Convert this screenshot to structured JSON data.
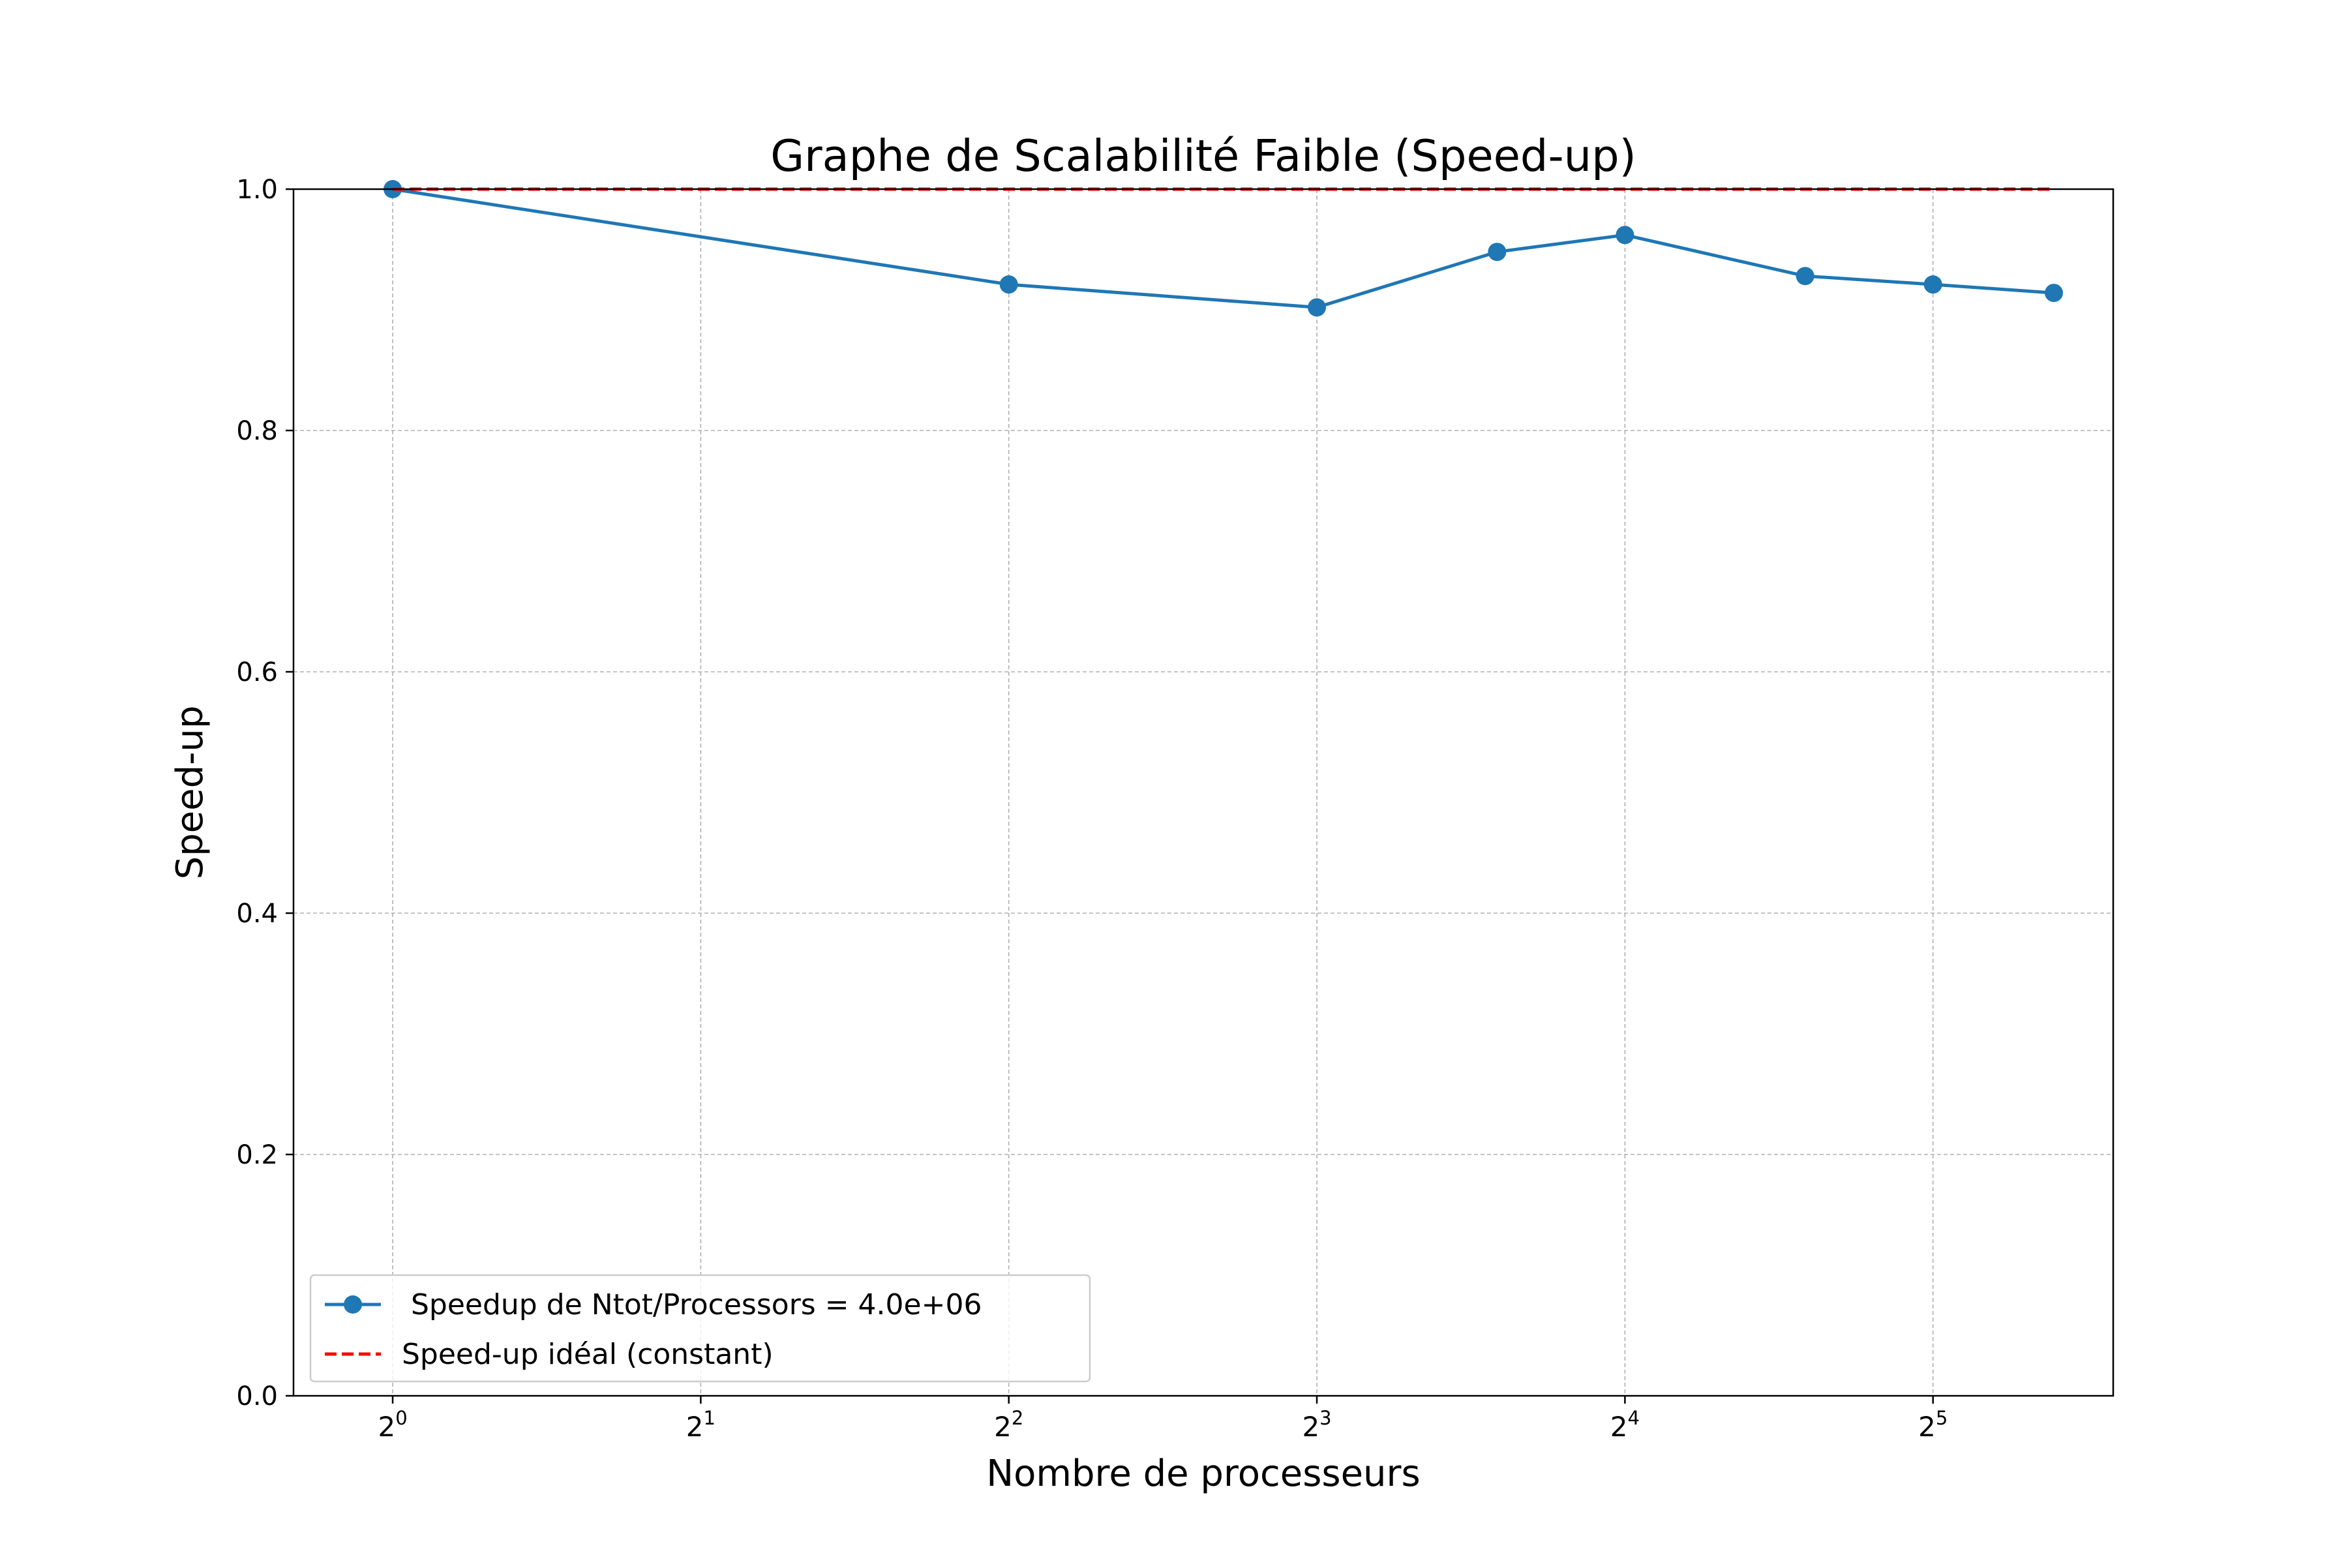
{
  "chart_data": {
    "type": "line",
    "title": "Graphe de Scalabilité Faible (Speed-up)",
    "xlabel": "Nombre de processeurs",
    "ylabel": "Speed-up",
    "xscale": "log2",
    "xlim": [
      0.8,
      48
    ],
    "ylim": [
      0,
      1.0
    ],
    "x_ticks": [
      {
        "value": 1,
        "base": "2",
        "exp": "0"
      },
      {
        "value": 2,
        "base": "2",
        "exp": "1"
      },
      {
        "value": 4,
        "base": "2",
        "exp": "2"
      },
      {
        "value": 8,
        "base": "2",
        "exp": "3"
      },
      {
        "value": 16,
        "base": "2",
        "exp": "4"
      },
      {
        "value": 32,
        "base": "2",
        "exp": "5"
      }
    ],
    "y_ticks": [
      {
        "value": 0.0,
        "label": "0.0"
      },
      {
        "value": 0.2,
        "label": "0.2"
      },
      {
        "value": 0.4,
        "label": "0.4"
      },
      {
        "value": 0.6,
        "label": "0.6"
      },
      {
        "value": 0.8,
        "label": "0.8"
      },
      {
        "value": 1.0,
        "label": "1.0"
      }
    ],
    "grid": true,
    "legend_position": "lower-left",
    "series": [
      {
        "name": " Speedup de Ntot/Processors = 4.0e+06",
        "color": "#1f77b4",
        "style": "solid",
        "marker": "circle",
        "x": [
          1,
          4,
          8,
          12,
          16,
          24,
          32,
          42
        ],
        "y": [
          1.0,
          0.921,
          0.902,
          0.948,
          0.962,
          0.928,
          0.921,
          0.914
        ]
      },
      {
        "name": "Speed-up idéal (constant)",
        "color": "#ff0000",
        "style": "dashed",
        "marker": "none",
        "x": [
          1,
          42
        ],
        "y": [
          1.0,
          1.0
        ]
      }
    ]
  }
}
